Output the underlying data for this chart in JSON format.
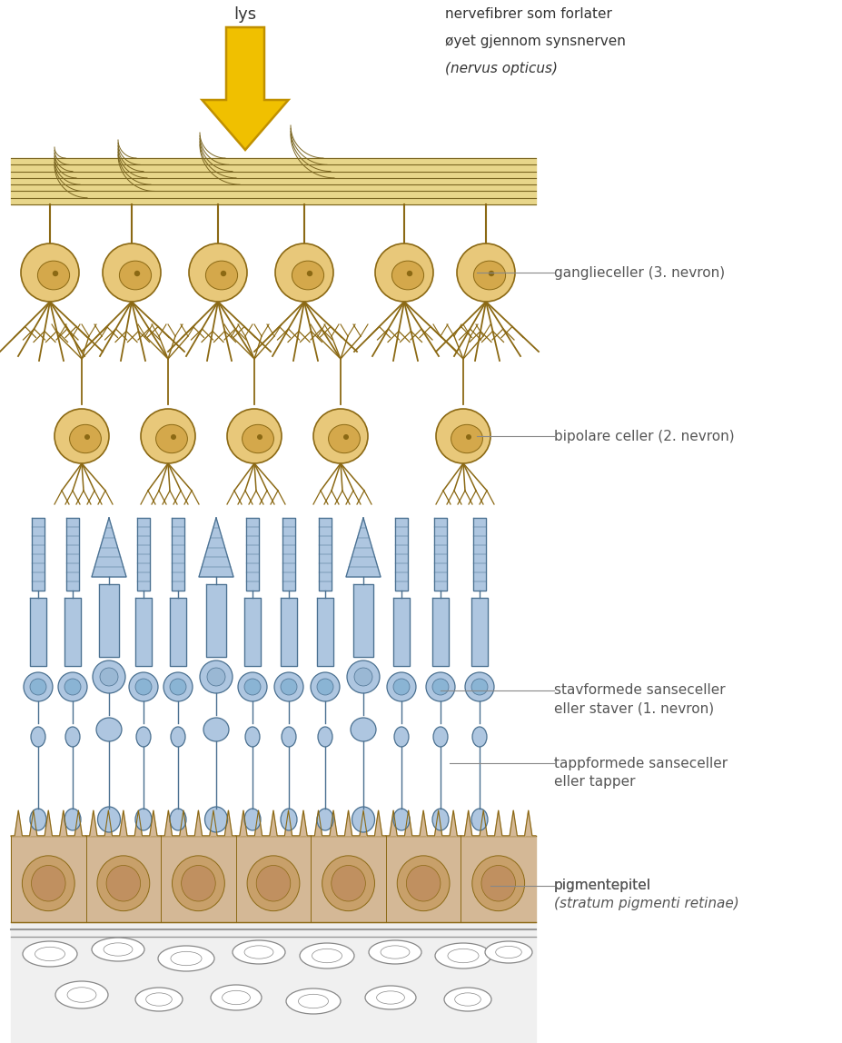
{
  "bg_color": "#ffffff",
  "nerve_fiber_color": "#e8d68a",
  "nerve_fiber_outline": "#7a6520",
  "cell_fill": "#e8c87a",
  "cell_outline": "#8b6914",
  "cell_nucleus": "#d4a84b",
  "rod_fill": "#aec6e0",
  "rod_outline": "#4a7090",
  "cone_fill": "#b8d0e8",
  "cone_outline": "#4a7090",
  "pigment_fill": "#d4b896",
  "pigment_outline": "#8b6914",
  "pigment_nucleus_fill": "#c8a06a",
  "choroid_fill": "#f0f0f0",
  "choroid_line": "#999999",
  "rbc_fill": "#ffffff",
  "rbc_outline": "#888888",
  "arrow_fill": "#f0c000",
  "arrow_edge": "#c09000",
  "label_color": "#555555",
  "top_label_color": "#333333",
  "lys_text": "lys",
  "nerve_label_line1": "nervefibrer som forlater",
  "nerve_label_line2": "øyet gjennom synsnerven",
  "nerve_label_line3": "(nervus opticus)",
  "ganglia_label": "ganglieceller (3. nevron)",
  "bipolar_label": "bipolare celler (2. nevron)",
  "rod_label1": "stavformede sanseceller",
  "rod_label2": "eller staver (1. nevron)",
  "cone_label1": "tappformede sanseceller",
  "cone_label2": "eller tapper",
  "pigment_label1": "pigmentepitel",
  "pigment_label2": "(stratum pigmenti retinae)"
}
